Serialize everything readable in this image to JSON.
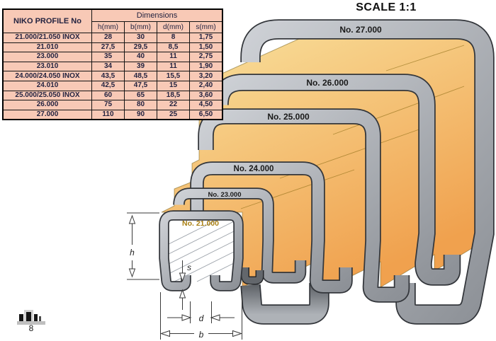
{
  "page": {
    "scale_title": "SCALE 1:1",
    "page_number": "8"
  },
  "table": {
    "col1_header": "NIKO PROFILE No",
    "group_header": "Dimensions",
    "sub_headers": [
      "h(mm)",
      "b(mm)",
      "d(mm)",
      "s(mm)"
    ],
    "rows": [
      [
        "21.000/21.050 INOX",
        "28",
        "30",
        "8",
        "1,75"
      ],
      [
        "21.010",
        "27,5",
        "29,5",
        "8,5",
        "1,50"
      ],
      [
        "23.000",
        "35",
        "40",
        "11",
        "2,75"
      ],
      [
        "23.010",
        "34",
        "39",
        "11",
        "1,90"
      ],
      [
        "24.000/24.050 INOX",
        "43,5",
        "48,5",
        "15,5",
        "3,20"
      ],
      [
        "24.010",
        "42,5",
        "47,5",
        "15",
        "2,40"
      ],
      [
        "25.000/25.050 INOX",
        "60",
        "65",
        "18,5",
        "3,60"
      ],
      [
        "26.000",
        "75",
        "80",
        "22",
        "4,50"
      ],
      [
        "27.000",
        "110",
        "90",
        "25",
        "6,50"
      ]
    ]
  },
  "diagram": {
    "profile_labels": [
      "No. 27.000",
      "No. 26.000",
      "No. 25.000",
      "No. 24.000",
      "No. 23.000",
      "No. 21.000"
    ],
    "dimension_labels": [
      "h",
      "s",
      "d",
      "b"
    ],
    "colors": {
      "beam_yellow_light": "#f9e29e",
      "beam_yellow_dark": "#f0a14e",
      "profile_gray_light": "#cdd0d5",
      "profile_gray_dark": "#8d9197",
      "profile_outline": "#33363b",
      "label_color": "#1a1a1a",
      "label_21_color": "#a97f12",
      "table_bg": "#f8c9b6"
    }
  }
}
